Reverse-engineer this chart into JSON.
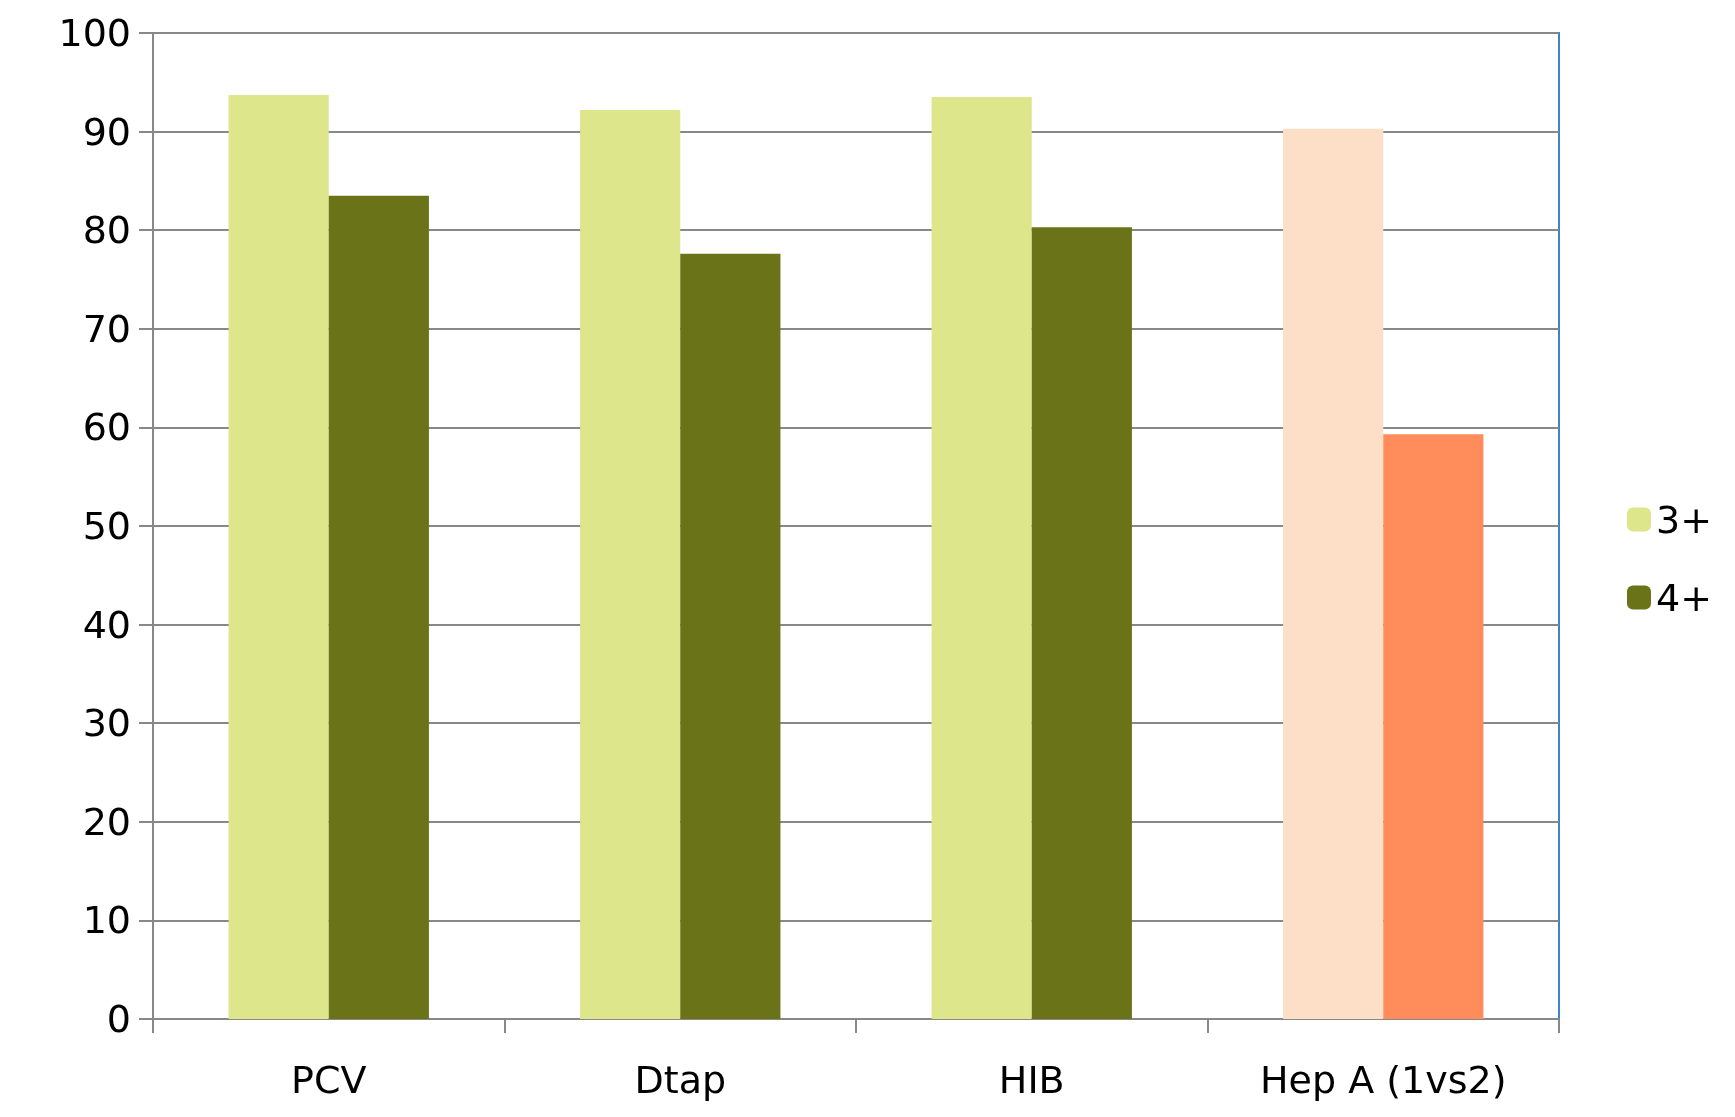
{
  "chart_data": {
    "type": "bar",
    "categories": [
      "PCV",
      "Dtap",
      "HIB",
      "Hep A (1vs2)"
    ],
    "series": [
      {
        "name": "3+",
        "color": "#dde68a",
        "colors": [
          "#dde68a",
          "#dde68a",
          "#dde68a",
          "#fddec6"
        ],
        "values": [
          93.7,
          92.2,
          93.5,
          90.3
        ]
      },
      {
        "name": "4+",
        "color": "#6b7319",
        "colors": [
          "#6b7319",
          "#6b7319",
          "#6b7319",
          "#ff8c5a"
        ],
        "values": [
          83.5,
          77.6,
          80.3,
          59.3
        ]
      }
    ],
    "ylim": [
      0,
      100
    ],
    "yticks": [
      0,
      10,
      20,
      30,
      40,
      50,
      60,
      70,
      80,
      90,
      100
    ],
    "grid": "y",
    "legend": "right"
  }
}
